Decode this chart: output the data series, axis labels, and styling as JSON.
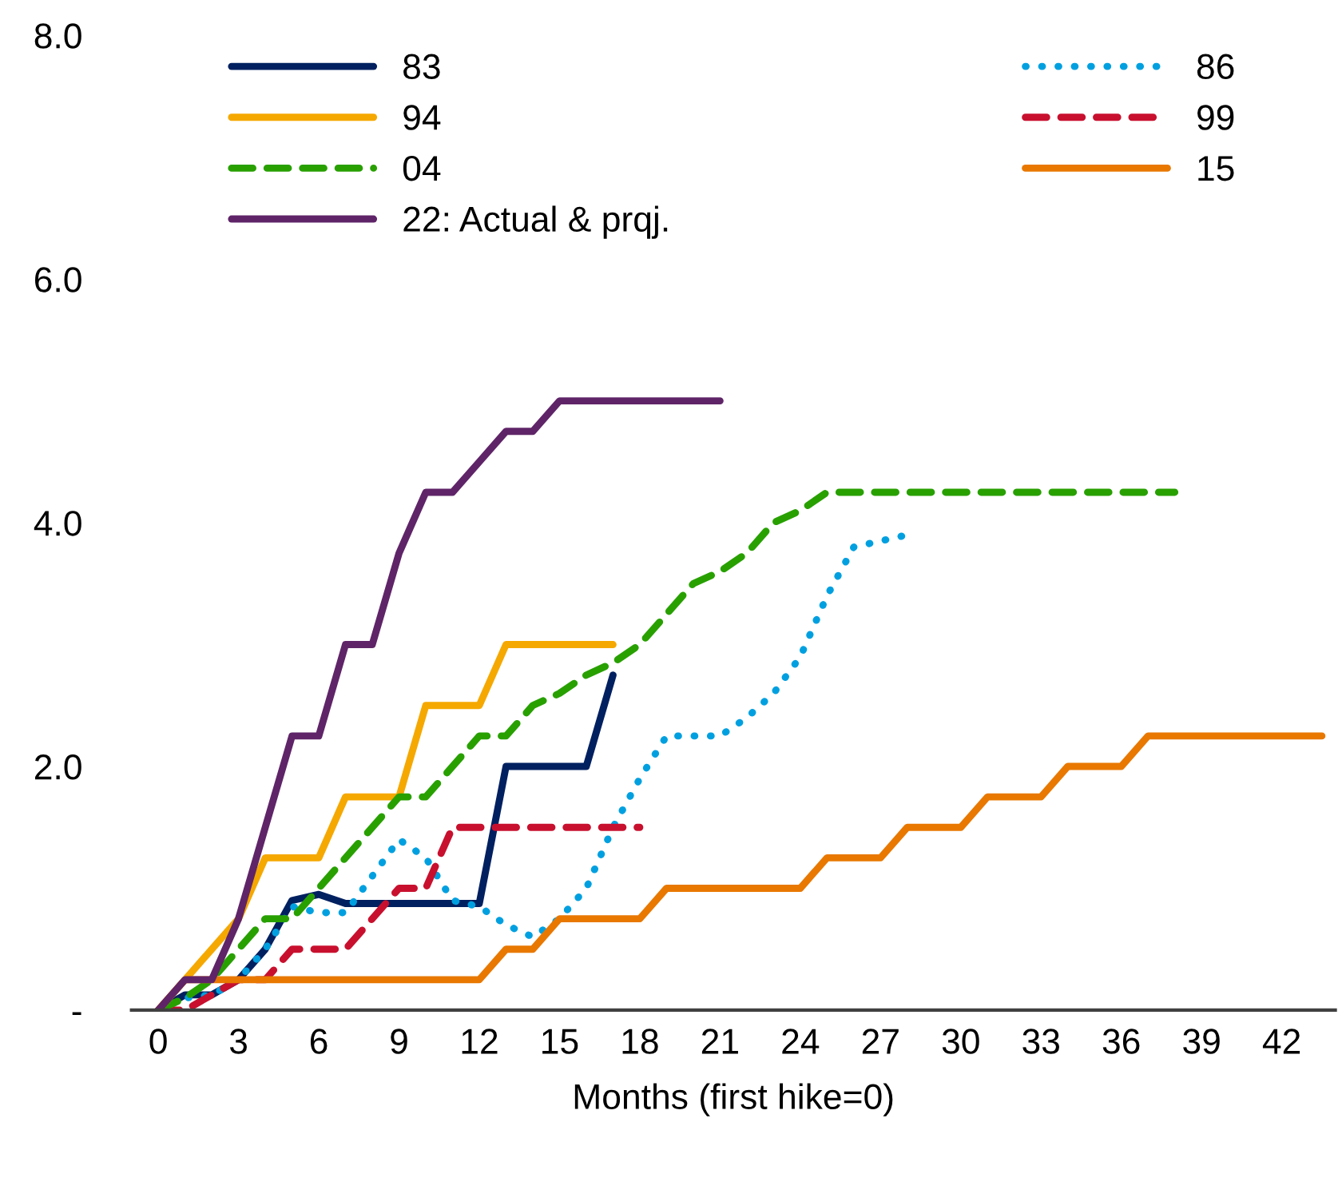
{
  "chart_data": {
    "type": "line",
    "xlabel": "Months (first hike=0)",
    "xlim": [
      -1,
      44
    ],
    "xticks": [
      0,
      3,
      6,
      9,
      12,
      15,
      18,
      21,
      24,
      27,
      30,
      33,
      36,
      39,
      42
    ],
    "ylim": [
      0,
      8
    ],
    "yticks": [
      {
        "value": 0,
        "label": "-"
      },
      {
        "value": 2,
        "label": "2.0"
      },
      {
        "value": 4,
        "label": "4.0"
      },
      {
        "value": 6,
        "label": "6.0"
      },
      {
        "value": 8,
        "label": "8.0"
      }
    ],
    "grid": false,
    "legend": "top",
    "series": [
      {
        "name": "83",
        "color": "#002060",
        "line_style": "solid",
        "x": [
          0,
          1,
          2,
          3,
          4,
          5,
          6,
          7,
          8,
          9,
          10,
          11,
          12,
          13,
          14,
          15,
          16,
          17
        ],
        "values": [
          0,
          0.125,
          0.125,
          0.25,
          0.5,
          0.9,
          0.95,
          0.875,
          0.875,
          0.875,
          0.875,
          0.875,
          0.875,
          2.0,
          2.0,
          2.0,
          2.0,
          2.75
        ]
      },
      {
        "name": "86",
        "color": "#00a0e0",
        "line_style": "dotted",
        "x": [
          0,
          1,
          2,
          3,
          4,
          5,
          6,
          7,
          8,
          9,
          10,
          11,
          12,
          13,
          14,
          15,
          16,
          17,
          18,
          19,
          20,
          21,
          22,
          23,
          24,
          25,
          26,
          27,
          28
        ],
        "values": [
          0,
          0.1,
          0.125,
          0.25,
          0.5,
          0.85,
          0.8,
          0.8,
          1.1,
          1.4,
          1.25,
          0.9,
          0.85,
          0.7,
          0.6,
          0.75,
          1.0,
          1.5,
          1.9,
          2.25,
          2.25,
          2.25,
          2.4,
          2.6,
          2.9,
          3.4,
          3.8,
          3.85,
          3.9
        ]
      },
      {
        "name": "94",
        "color": "#f5a800",
        "line_style": "solid",
        "x": [
          0,
          1,
          2,
          3,
          4,
          5,
          6,
          7,
          8,
          9,
          10,
          11,
          12,
          13,
          14,
          15,
          16,
          17
        ],
        "values": [
          0,
          0.25,
          0.5,
          0.75,
          1.25,
          1.25,
          1.25,
          1.75,
          1.75,
          1.75,
          2.5,
          2.5,
          2.5,
          3.0,
          3.0,
          3.0,
          3.0,
          3.0
        ]
      },
      {
        "name": "99",
        "color": "#c8102e",
        "line_style": "dashed",
        "x": [
          0,
          1,
          2,
          3,
          4,
          5,
          6,
          7,
          8,
          9,
          10,
          11,
          12,
          13,
          14,
          15,
          16,
          17,
          18
        ],
        "values": [
          0,
          0,
          0.125,
          0.25,
          0.25,
          0.5,
          0.5,
          0.5,
          0.75,
          1.0,
          1.0,
          1.5,
          1.5,
          1.5,
          1.5,
          1.5,
          1.5,
          1.5,
          1.5
        ]
      },
      {
        "name": "04",
        "color": "#28a000",
        "line_style": "dashed",
        "x": [
          0,
          1,
          2,
          3,
          4,
          5,
          6,
          7,
          8,
          9,
          10,
          11,
          12,
          13,
          14,
          15,
          16,
          17,
          18,
          19,
          20,
          21,
          22,
          23,
          24,
          25,
          26,
          27,
          28,
          29,
          30,
          31,
          32,
          33,
          34,
          35,
          36,
          37,
          38
        ],
        "values": [
          0,
          0.1,
          0.25,
          0.5,
          0.75,
          0.75,
          1.0,
          1.25,
          1.5,
          1.75,
          1.75,
          2.0,
          2.25,
          2.25,
          2.5,
          2.6,
          2.75,
          2.85,
          3.0,
          3.25,
          3.5,
          3.6,
          3.75,
          4.0,
          4.1,
          4.25,
          4.25,
          4.25,
          4.25,
          4.25,
          4.25,
          4.25,
          4.25,
          4.25,
          4.25,
          4.25,
          4.25,
          4.25,
          4.25
        ]
      },
      {
        "name": "15",
        "color": "#e87800",
        "line_style": "solid",
        "x": [
          0,
          1,
          12,
          13,
          14,
          15,
          18,
          19,
          24,
          25,
          27,
          28,
          30,
          31,
          33,
          34,
          36,
          37,
          43.5
        ],
        "values": [
          0,
          0.25,
          0.25,
          0.5,
          0.5,
          0.75,
          0.75,
          1.0,
          1.0,
          1.25,
          1.25,
          1.5,
          1.5,
          1.75,
          1.75,
          2.0,
          2.0,
          2.25,
          2.25
        ]
      },
      {
        "name": "22: Actual & prqj.",
        "color": "#5f2468",
        "line_style": "solid",
        "x": [
          0,
          1,
          2,
          3,
          4,
          5,
          6,
          7,
          8,
          9,
          10,
          11,
          12,
          13,
          14,
          15,
          16,
          17,
          18,
          19,
          20,
          21
        ],
        "values": [
          0,
          0.25,
          0.25,
          0.75,
          1.5,
          2.25,
          2.25,
          3.0,
          3.0,
          3.75,
          4.25,
          4.25,
          4.5,
          4.75,
          4.75,
          5.0,
          5.0,
          5.0,
          5.0,
          5.0,
          5.0,
          5.0
        ]
      }
    ]
  }
}
